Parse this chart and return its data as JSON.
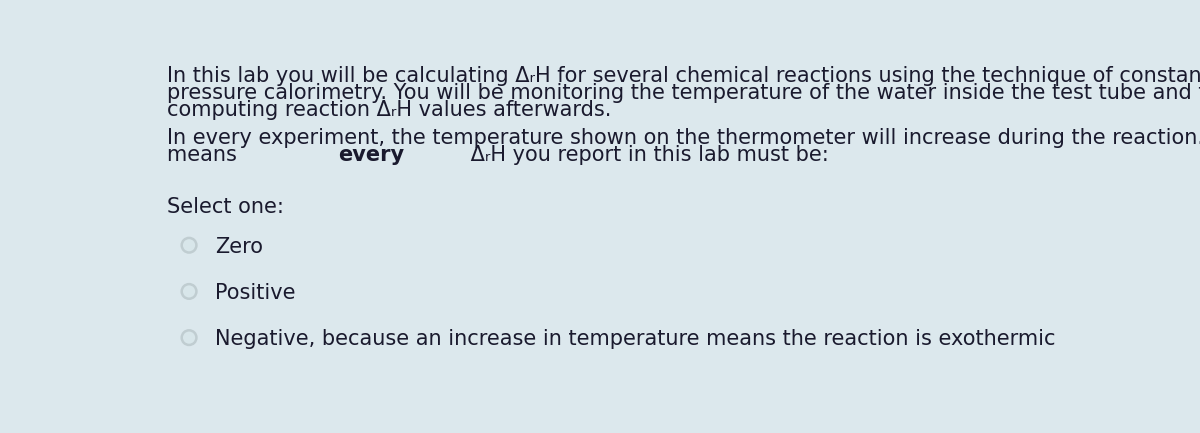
{
  "background_color": "#dce8ed",
  "text_color": "#1a1a2e",
  "font_size_body": 15.0,
  "paragraph1_lines": [
    "In this lab you will be calculating ΔᵣH for several chemical reactions using the technique of constant-",
    "pressure calorimetry. You will be monitoring the temperature of the water inside the test tube and then",
    "computing reaction ΔᵣH values afterwards."
  ],
  "paragraph2_line1": "In every experiment, the temperature shown on the thermometer will increase during the reaction. This",
  "paragraph2_line2_normal": "means ",
  "paragraph2_line2_bold": "every",
  "paragraph2_line2_rest": " ΔᵣH you report in this lab must be:",
  "select_label": "Select one:",
  "options": [
    "Zero",
    "Positive",
    "Negative, because an increase in temperature means the reaction is exothermic"
  ],
  "circle_edge_color": "#c0cdd1",
  "circle_face_color": "#d8e6ea"
}
